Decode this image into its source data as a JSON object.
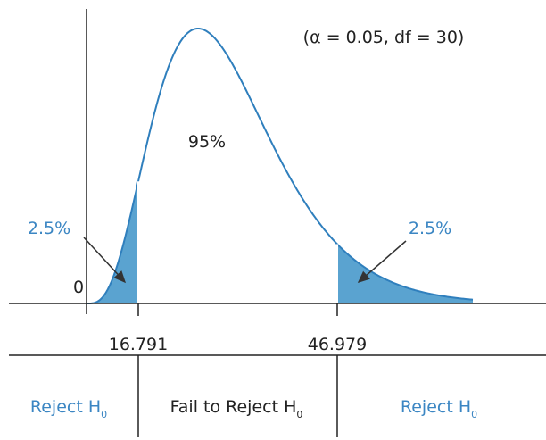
{
  "annotation": "(α = 0.05, df = 30)",
  "center_label": "95%",
  "left_tail_label": "2.5%",
  "right_tail_label": "2.5%",
  "origin_label": "0",
  "critical_values": [
    "16.791",
    "46.979"
  ],
  "regions": [
    {
      "text": "Reject H",
      "subscript": "0"
    },
    {
      "text": "Fail to Reject H",
      "subscript": "0"
    },
    {
      "text": "Reject H",
      "subscript": "0"
    }
  ]
}
